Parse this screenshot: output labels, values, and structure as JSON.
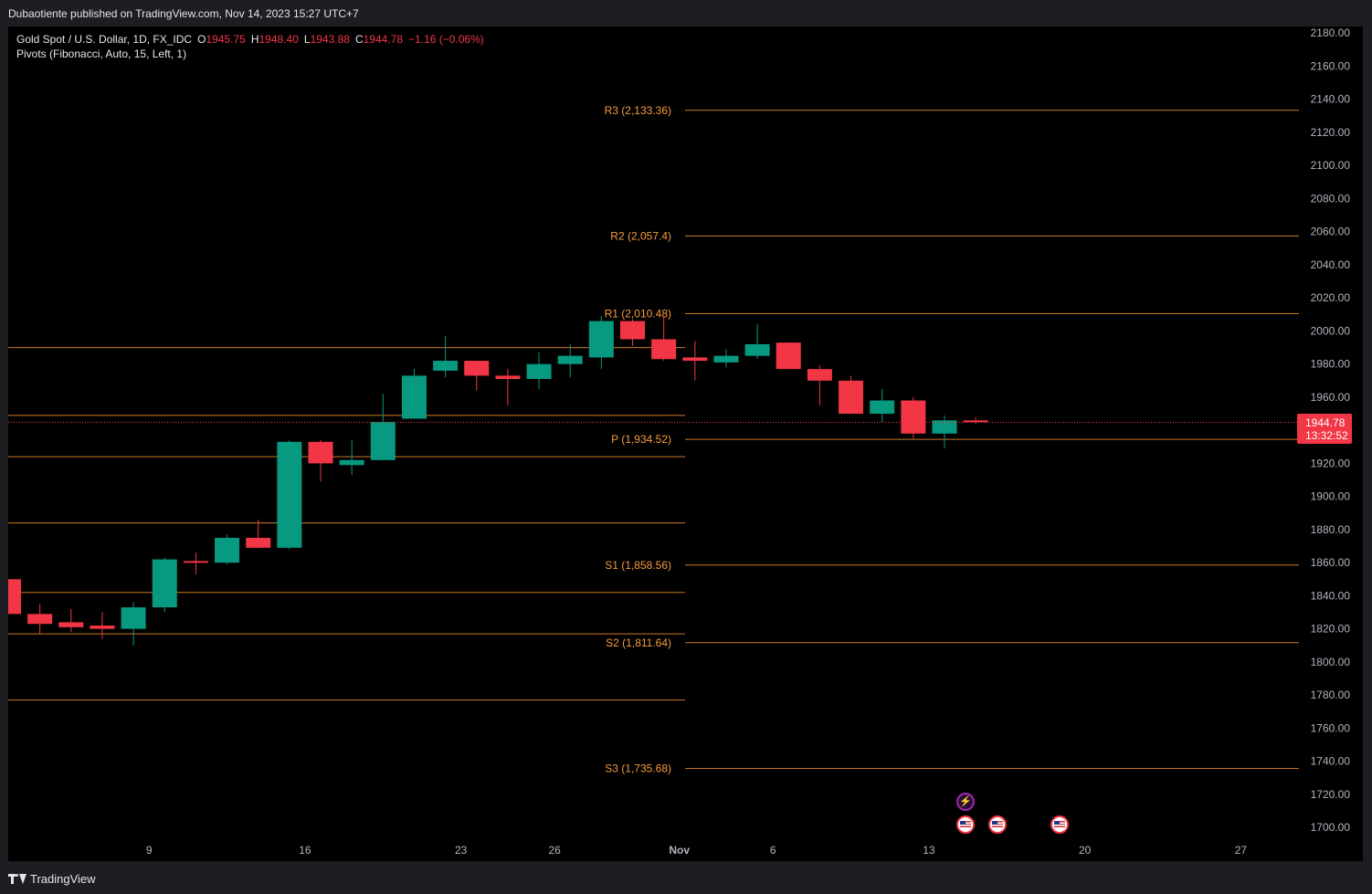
{
  "header": {
    "publisher_line": "Dubaotiente published on TradingView.com, Nov 14, 2023 15:27 UTC+7"
  },
  "legend": {
    "symbol": "Gold Spot / U.S. Dollar, 1D, FX_IDC",
    "open_label": "O",
    "open": "1945.75",
    "high_label": "H",
    "high": "1948.40",
    "low_label": "L",
    "low": "1943.88",
    "close_label": "C",
    "close": "1944.78",
    "change": "−1.16 (−0.06%)",
    "indicator": "Pivots (Fibonacci, Auto, 15, Left, 1)"
  },
  "price_tag": {
    "price": "1944.78",
    "countdown": "13:32:52",
    "color": "#f23645"
  },
  "footer": {
    "brand": "TradingView"
  },
  "colors": {
    "up": "#089981",
    "down": "#f23645",
    "pivot_line": "#e5862b",
    "pivot_label": "#f79b3c"
  },
  "chart_data": {
    "type": "candlestick",
    "y_axis": {
      "ticks": [
        "2180.00",
        "2160.00",
        "2140.00",
        "2120.00",
        "2100.00",
        "2080.00",
        "2060.00",
        "2040.00",
        "2020.00",
        "2000.00",
        "1980.00",
        "1960.00",
        "1940.00",
        "1920.00",
        "1900.00",
        "1880.00",
        "1860.00",
        "1840.00",
        "1820.00",
        "1800.00",
        "1780.00",
        "1760.00",
        "1740.00",
        "1720.00",
        "1700.00"
      ],
      "range": [
        1694,
        2184
      ],
      "position": "right"
    },
    "x_axis": {
      "ticks": [
        "9",
        "16",
        "23",
        "26",
        "Nov",
        "6",
        "13",
        "20",
        "27"
      ],
      "tick_index": [
        4.5,
        9.5,
        14.5,
        17.5,
        21.5,
        24.5,
        29.5,
        34.5,
        39.5
      ]
    },
    "candles": [
      {
        "o": 1850,
        "h": 1850,
        "l": 1829,
        "c": 1829
      },
      {
        "o": 1829,
        "h": 1835,
        "l": 1817,
        "c": 1823
      },
      {
        "o": 1824,
        "h": 1832,
        "l": 1818,
        "c": 1821
      },
      {
        "o": 1822,
        "h": 1830,
        "l": 1814,
        "c": 1820
      },
      {
        "o": 1820,
        "h": 1836,
        "l": 1810,
        "c": 1833
      },
      {
        "o": 1833,
        "h": 1863,
        "l": 1830,
        "c": 1862
      },
      {
        "o": 1861,
        "h": 1866,
        "l": 1853,
        "c": 1860
      },
      {
        "o": 1860,
        "h": 1877,
        "l": 1859,
        "c": 1875
      },
      {
        "o": 1875,
        "h": 1886,
        "l": 1869,
        "c": 1869
      },
      {
        "o": 1869,
        "h": 1934,
        "l": 1868,
        "c": 1933
      },
      {
        "o": 1933,
        "h": 1934,
        "l": 1909,
        "c": 1920
      },
      {
        "o": 1919,
        "h": 1934,
        "l": 1913,
        "c": 1922
      },
      {
        "o": 1922,
        "h": 1962,
        "l": 1922,
        "c": 1945
      },
      {
        "o": 1947,
        "h": 1977,
        "l": 1947,
        "c": 1973
      },
      {
        "o": 1976,
        "h": 1997,
        "l": 1972,
        "c": 1982
      },
      {
        "o": 1982,
        "h": 1982,
        "l": 1964,
        "c": 1973
      },
      {
        "o": 1973,
        "h": 1977,
        "l": 1955,
        "c": 1971
      },
      {
        "o": 1971,
        "h": 1987,
        "l": 1965,
        "c": 1980
      },
      {
        "o": 1980,
        "h": 1992,
        "l": 1972,
        "c": 1985
      },
      {
        "o": 1984,
        "h": 2009,
        "l": 1977,
        "c": 2006
      },
      {
        "o": 2006,
        "h": 2007,
        "l": 1991,
        "c": 1995
      },
      {
        "o": 1995,
        "h": 2009,
        "l": 1982,
        "c": 1983
      },
      {
        "o": 1984,
        "h": 1994,
        "l": 1970,
        "c": 1982
      },
      {
        "o": 1981,
        "h": 1989,
        "l": 1978,
        "c": 1985
      },
      {
        "o": 1985,
        "h": 2004,
        "l": 1983,
        "c": 1992
      },
      {
        "o": 1993,
        "h": 1993,
        "l": 1977,
        "c": 1977
      },
      {
        "o": 1977,
        "h": 1979,
        "l": 1955,
        "c": 1970
      },
      {
        "o": 1970,
        "h": 1973,
        "l": 1950,
        "c": 1950
      },
      {
        "o": 1950,
        "h": 1965,
        "l": 1945,
        "c": 1958
      },
      {
        "o": 1958,
        "h": 1960,
        "l": 1935,
        "c": 1938
      },
      {
        "o": 1938,
        "h": 1949,
        "l": 1929,
        "c": 1946
      },
      {
        "o": 1946,
        "h": 1948,
        "l": 1944,
        "c": 1945
      }
    ],
    "pivots_current": [
      {
        "label": "R3 (2,133.36)",
        "value": 2133.36
      },
      {
        "label": "R2 (2,057.4)",
        "value": 2057.4
      },
      {
        "label": "R1 (2,010.48)",
        "value": 2010.48
      },
      {
        "label": "P (1,934.52)",
        "value": 1934.52
      },
      {
        "label": "S1 (1,858.56)",
        "value": 1858.56
      },
      {
        "label": "S2 (1,811.64)",
        "value": 1811.64
      },
      {
        "label": "S3 (1,735.68)",
        "value": 1735.68
      }
    ],
    "pivots_previous": [
      1990,
      1949,
      1924,
      1884,
      1842,
      1817,
      1777
    ],
    "last_price": 1944.78,
    "events": [
      {
        "kind": "flash",
        "index": 30.5
      },
      {
        "kind": "us-flag",
        "index": 30.5
      },
      {
        "kind": "us-flag",
        "index": 32.5
      },
      {
        "kind": "us-flag",
        "index": 36.5
      }
    ]
  }
}
